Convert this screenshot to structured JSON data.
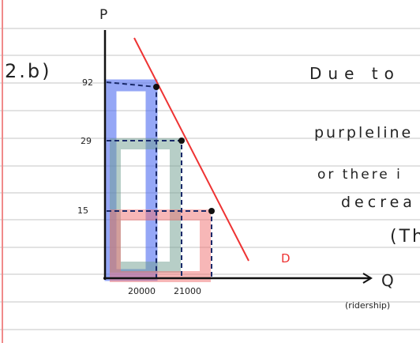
{
  "question": "2.b)",
  "graph": {
    "y_axis": "P",
    "x_axis": "Q",
    "x_axis_note": "(ridership)",
    "prices": [
      "92",
      "29",
      "15"
    ],
    "quantities": [
      "20000",
      "21000"
    ],
    "curve": "D"
  },
  "notes": [
    "Due to",
    "purpleline",
    "or there i",
    "decrea",
    "(Th"
  ]
}
